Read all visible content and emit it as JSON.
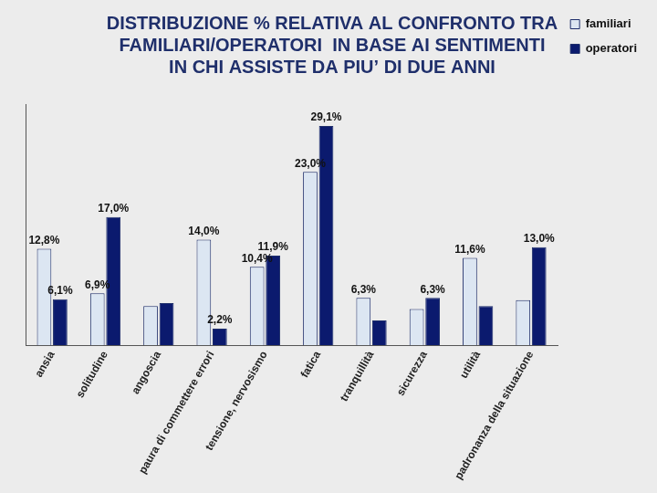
{
  "chart_data": {
    "type": "bar",
    "title": [
      "DISTRIBUZIONE % RELATIVA AL CONFRONTO TRA",
      "FAMILIARI/OPERATORI  IN BASE AI SENTIMENTI",
      "IN CHI ASSISTE DA PIU’ DI DUE ANNI"
    ],
    "categories": [
      "ansia",
      "solitudine",
      "angoscia",
      "paura di commettere errori",
      "tensione, nervosismo",
      "fatica",
      "tranquillità",
      "sicurezza",
      "utilità",
      "padronanza della situazione"
    ],
    "series": [
      {
        "name": "familiari",
        "color": "#dce6f2",
        "values": [
          12.8,
          6.9,
          5.2,
          14.0,
          10.4,
          23.0,
          6.3,
          4.8,
          11.6,
          6.0
        ],
        "value_labels": [
          "12,8%",
          "6,9%",
          null,
          "14,0%",
          "10,4%",
          "23,0%",
          "6,3%",
          null,
          "11,6%",
          null
        ]
      },
      {
        "name": "operatori",
        "color": "#0b1a6e",
        "values": [
          6.1,
          17.0,
          5.6,
          2.2,
          11.9,
          29.1,
          3.3,
          6.3,
          5.2,
          13.0
        ],
        "value_labels": [
          "6,1%",
          "17,0%",
          null,
          "2,2%",
          "11,9%",
          "29,1%",
          null,
          "6,3%",
          null,
          "13,0%"
        ]
      }
    ],
    "ylim": [
      0,
      32
    ],
    "data_labels": true,
    "tick_labels": "x",
    "grid": false,
    "legend": "right"
  }
}
